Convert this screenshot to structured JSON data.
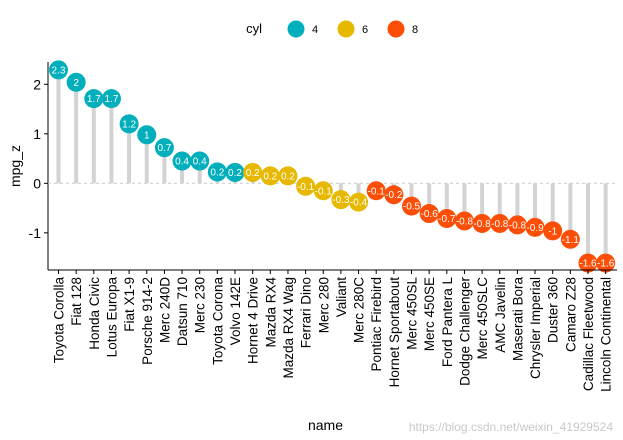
{
  "chart_data": {
    "type": "lollipop",
    "title": "",
    "xlabel": "name",
    "ylabel": "mpg_z",
    "ylim": [
      -1.75,
      2.45
    ],
    "yticks": [
      -1,
      0,
      1,
      2
    ],
    "legend": {
      "title": "cyl",
      "position": "top",
      "entries": [
        {
          "label": "4",
          "color": "#00AFBB"
        },
        {
          "label": "6",
          "color": "#E7B800"
        },
        {
          "label": "8",
          "color": "#FC4E07"
        }
      ]
    },
    "points": [
      {
        "name": "Toyota Corolla",
        "value": 2.29,
        "label": "2.3",
        "cyl": "4"
      },
      {
        "name": "Fiat 128",
        "value": 2.04,
        "label": "2",
        "cyl": "4"
      },
      {
        "name": "Honda Civic",
        "value": 1.71,
        "label": "1.7",
        "cyl": "4"
      },
      {
        "name": "Lotus Europa",
        "value": 1.71,
        "label": "1.7",
        "cyl": "4"
      },
      {
        "name": "Fiat X1-9",
        "value": 1.2,
        "label": "1.2",
        "cyl": "4"
      },
      {
        "name": "Porsche 914-2",
        "value": 0.98,
        "label": "1",
        "cyl": "4"
      },
      {
        "name": "Merc 240D",
        "value": 0.72,
        "label": "0.7",
        "cyl": "4"
      },
      {
        "name": "Datsun 710",
        "value": 0.45,
        "label": "0.4",
        "cyl": "4"
      },
      {
        "name": "Merc 230",
        "value": 0.45,
        "label": "0.4",
        "cyl": "4"
      },
      {
        "name": "Toyota Corona",
        "value": 0.23,
        "label": "0.2",
        "cyl": "4"
      },
      {
        "name": "Volvo 142E",
        "value": 0.22,
        "label": "0.2",
        "cyl": "4"
      },
      {
        "name": "Hornet 4 Drive",
        "value": 0.22,
        "label": "0.2",
        "cyl": "6"
      },
      {
        "name": "Mazda RX4",
        "value": 0.15,
        "label": "0.2",
        "cyl": "6"
      },
      {
        "name": "Mazda RX4 Wag",
        "value": 0.15,
        "label": "0.2",
        "cyl": "6"
      },
      {
        "name": "Ferrari Dino",
        "value": -0.06,
        "label": "-0.1",
        "cyl": "6"
      },
      {
        "name": "Merc 280",
        "value": -0.15,
        "label": "-0.1",
        "cyl": "6"
      },
      {
        "name": "Valiant",
        "value": -0.33,
        "label": "-0.3",
        "cyl": "6"
      },
      {
        "name": "Merc 280C",
        "value": -0.38,
        "label": "-0.4",
        "cyl": "6"
      },
      {
        "name": "Pontiac Firebird",
        "value": -0.15,
        "label": "-0.1",
        "cyl": "8"
      },
      {
        "name": "Hornet Sportabout",
        "value": -0.23,
        "label": "-0.2",
        "cyl": "8"
      },
      {
        "name": "Merc 450SL",
        "value": -0.46,
        "label": "-0.5",
        "cyl": "8"
      },
      {
        "name": "Merc 450SE",
        "value": -0.61,
        "label": "-0.6",
        "cyl": "8"
      },
      {
        "name": "Ford Pantera L",
        "value": -0.71,
        "label": "-0.7",
        "cyl": "8"
      },
      {
        "name": "Dodge Challenger",
        "value": -0.76,
        "label": "-0.8",
        "cyl": "8"
      },
      {
        "name": "Merc 450SLC",
        "value": -0.81,
        "label": "-0.8",
        "cyl": "8"
      },
      {
        "name": "AMC Javelin",
        "value": -0.81,
        "label": "-0.8",
        "cyl": "8"
      },
      {
        "name": "Maserati Bora",
        "value": -0.84,
        "label": "-0.8",
        "cyl": "8"
      },
      {
        "name": "Chrysler Imperial",
        "value": -0.89,
        "label": "-0.9",
        "cyl": "8"
      },
      {
        "name": "Duster 360",
        "value": -0.96,
        "label": "-1",
        "cyl": "8"
      },
      {
        "name": "Camaro Z28",
        "value": -1.13,
        "label": "-1.1",
        "cyl": "8"
      },
      {
        "name": "Cadillac Fleetwood",
        "value": -1.61,
        "label": "-1.6",
        "cyl": "8"
      },
      {
        "name": "Lincoln Continental",
        "value": -1.61,
        "label": "-1.6",
        "cyl": "8"
      }
    ]
  },
  "watermark": "https://blog.csdn.net/weixin_41929524"
}
